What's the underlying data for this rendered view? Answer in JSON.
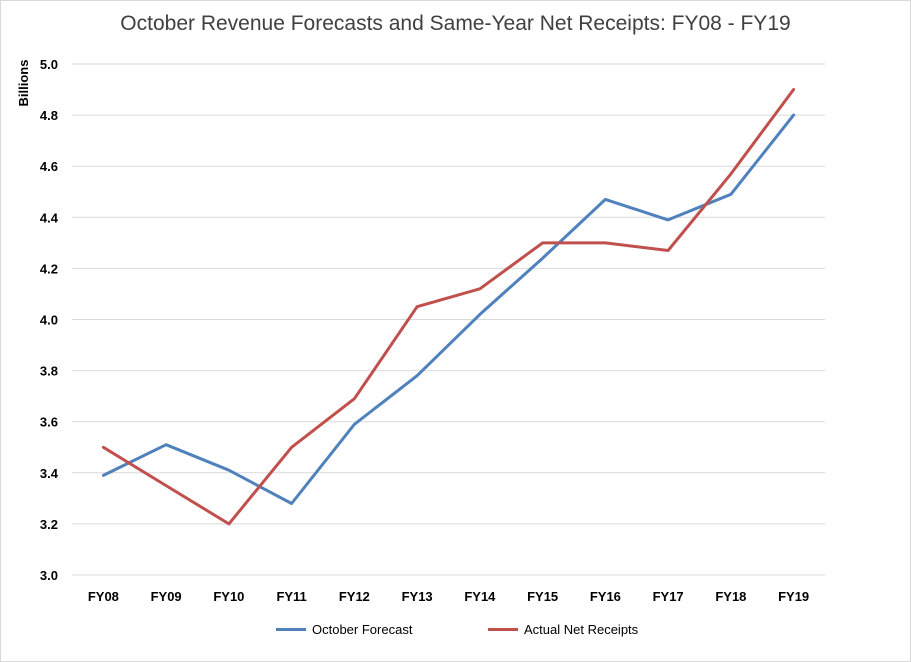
{
  "chart_data": {
    "type": "line",
    "title": "October Revenue Forecasts and Same-Year Net Receipts: FY08 - FY19",
    "ylabel": "Billions",
    "xlabel": "",
    "categories": [
      "FY08",
      "FY09",
      "FY10",
      "FY11",
      "FY12",
      "FY13",
      "FY14",
      "FY15",
      "FY16",
      "FY17",
      "FY18",
      "FY19"
    ],
    "ylim": [
      3.0,
      5.0
    ],
    "yticks": [
      "3.0",
      "3.2",
      "3.4",
      "3.6",
      "3.8",
      "4.0",
      "4.2",
      "4.4",
      "4.6",
      "4.8",
      "5.0"
    ],
    "grid": true,
    "legend_position": "bottom",
    "series": [
      {
        "name": "October Forecast",
        "color": "#4f81bd",
        "values": [
          3.39,
          3.51,
          3.41,
          3.28,
          3.59,
          3.78,
          4.02,
          4.24,
          4.47,
          4.39,
          4.49,
          4.8
        ]
      },
      {
        "name": "Actual Net Receipts",
        "color": "#c0504d",
        "values": [
          3.5,
          3.35,
          3.2,
          3.5,
          3.69,
          4.05,
          4.12,
          4.3,
          4.3,
          4.27,
          4.57,
          4.9
        ]
      }
    ]
  }
}
